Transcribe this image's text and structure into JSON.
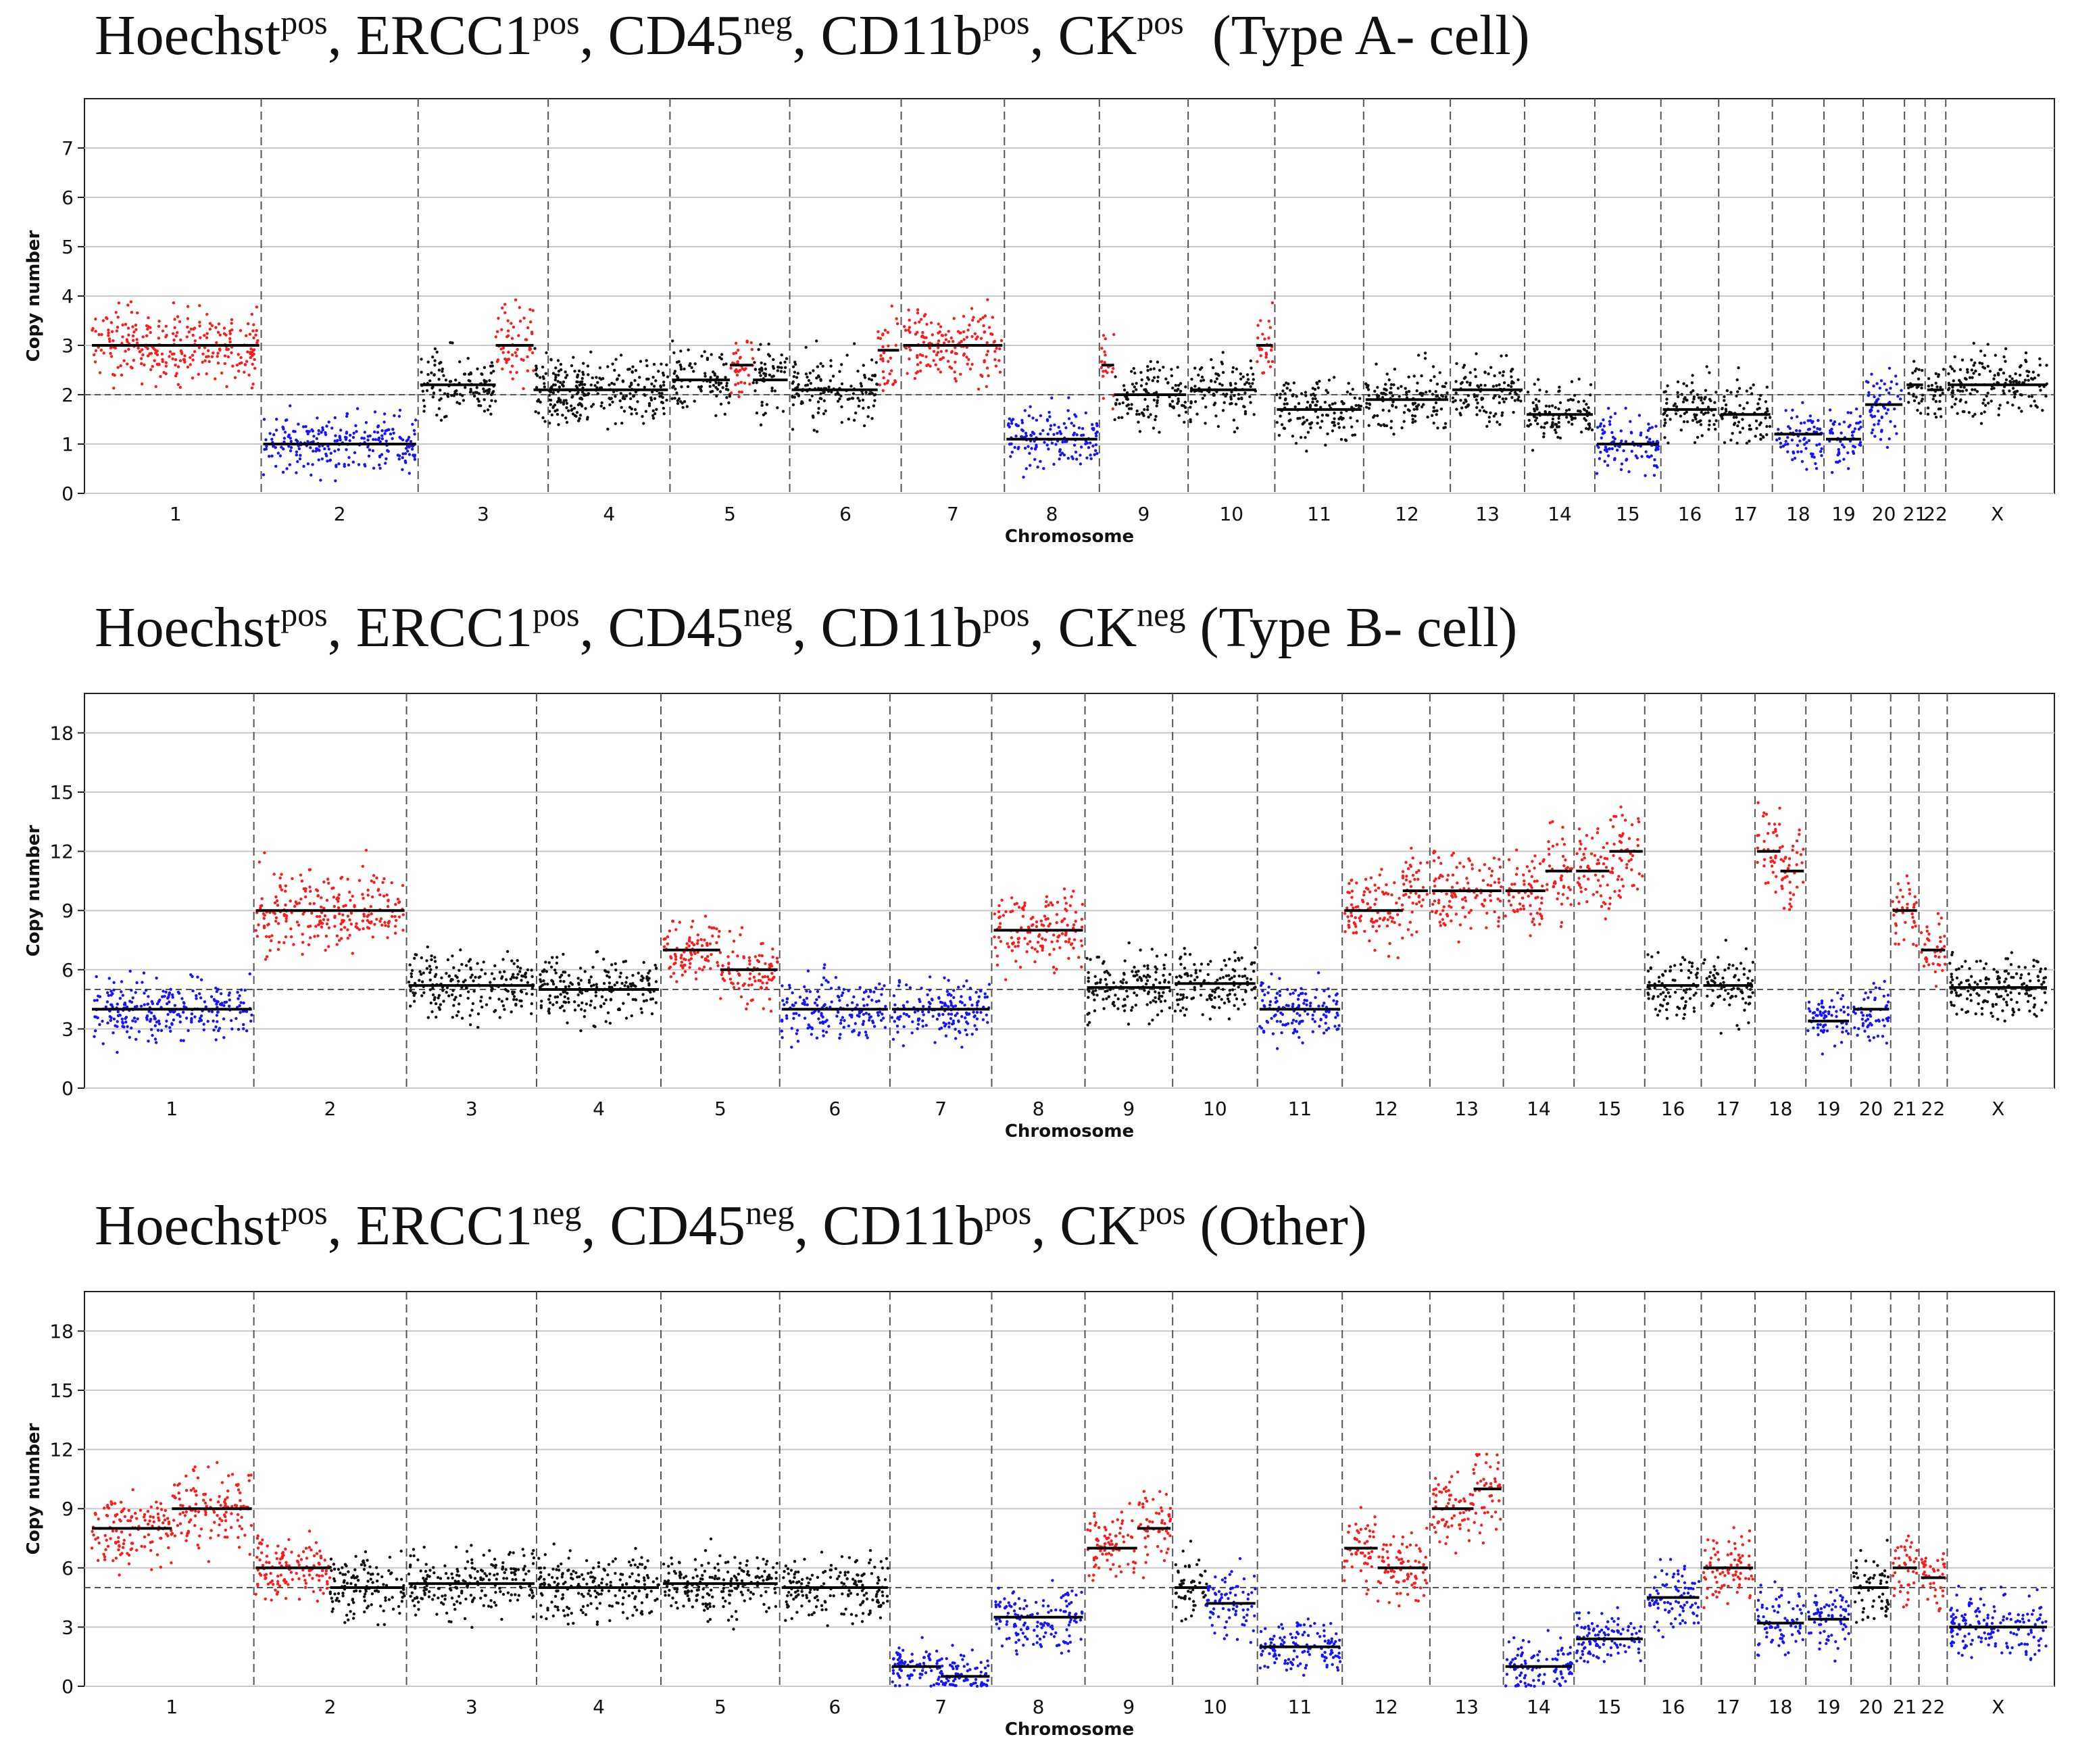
{
  "colors": {
    "gain": "#ff1a1a",
    "loss": "#1414ff",
    "neutral": "#111111",
    "grid": "#c8c8c8"
  },
  "chart_data": [
    {
      "type": "scatter",
      "title": {
        "prefix": "Hoechst",
        "prefix_sup": "pos",
        "m1": "ERCC1",
        "m1_sup": "pos",
        "m2": "CD45",
        "m2_sup": "neg",
        "m3": "CD11b",
        "m3_sup": "pos",
        "m4": "CK",
        "m4_sup": "pos",
        "suffix": "(Type A- cell)"
      },
      "xlabel": "Chromosome",
      "ylabel": "Copy number",
      "ylim": [
        0,
        8
      ],
      "yticks": [
        0,
        1,
        2,
        3,
        4,
        5,
        6,
        7
      ],
      "baseline": 2,
      "chromosomes": [
        "1",
        "2",
        "3",
        "4",
        "5",
        "6",
        "7",
        "8",
        "9",
        "10",
        "11",
        "12",
        "13",
        "14",
        "15",
        "16",
        "17",
        "18",
        "19",
        "20",
        "21",
        "22",
        "X"
      ],
      "chrom_weights": [
        8.3,
        7.6,
        6.3,
        5.9,
        5.8,
        5.4,
        5.0,
        4.6,
        4.3,
        4.2,
        4.3,
        4.2,
        3.6,
        3.4,
        3.2,
        2.8,
        2.6,
        2.5,
        1.9,
        2.0,
        1.0,
        1.0,
        5.0
      ],
      "segments": [
        [
          [
            3,
            0.5,
            "gain"
          ],
          [
            3,
            0.5,
            "gain"
          ]
        ],
        [
          [
            1,
            0.5,
            "loss"
          ],
          [
            1,
            0.5,
            "loss"
          ]
        ],
        [
          [
            2.2,
            0.6,
            "neutral"
          ],
          [
            3,
            0.3,
            "gain"
          ],
          [
            2.1,
            0.4,
            "neutral"
          ]
        ],
        [
          [
            2.1,
            1,
            "neutral"
          ]
        ],
        [
          [
            2.3,
            0.5,
            "neutral"
          ],
          [
            2.6,
            0.2,
            "gain"
          ],
          [
            2.3,
            0.3,
            "neutral"
          ]
        ],
        [
          [
            2.1,
            0.8,
            "neutral"
          ],
          [
            2.9,
            0.2,
            "gain"
          ]
        ],
        [
          [
            3,
            1,
            "gain"
          ]
        ],
        [
          [
            1.1,
            1,
            "loss"
          ]
        ],
        [
          [
            2.6,
            0.15,
            "gain"
          ],
          [
            2.0,
            0.85,
            "neutral"
          ]
        ],
        [
          [
            2.1,
            0.8,
            "neutral"
          ],
          [
            3,
            0.2,
            "gain"
          ]
        ],
        [
          [
            1.7,
            1,
            "neutral"
          ]
        ],
        [
          [
            1.9,
            1,
            "neutral"
          ]
        ],
        [
          [
            2.1,
            1,
            "neutral"
          ]
        ],
        [
          [
            1.6,
            1,
            "neutral"
          ]
        ],
        [
          [
            1.0,
            1,
            "loss"
          ]
        ],
        [
          [
            1.7,
            1,
            "neutral"
          ]
        ],
        [
          [
            1.6,
            1,
            "neutral"
          ]
        ],
        [
          [
            1.2,
            1,
            "loss"
          ]
        ],
        [
          [
            1.1,
            1,
            "loss"
          ]
        ],
        [
          [
            1.8,
            1,
            "loss"
          ]
        ],
        [
          [
            2.2,
            1,
            "neutral"
          ]
        ],
        [
          [
            2.1,
            1,
            "neutral"
          ]
        ],
        [
          [
            2.2,
            1,
            "neutral"
          ]
        ]
      ]
    },
    {
      "type": "scatter",
      "title": {
        "prefix": "Hoechst",
        "prefix_sup": "pos",
        "m1": "ERCC1",
        "m1_sup": "pos",
        "m2": "CD45",
        "m2_sup": "neg",
        "m3": "CD11b",
        "m3_sup": "pos",
        "m4": "CK",
        "m4_sup": "neg",
        "suffix": "(Type B- cell)"
      },
      "xlabel": "Chromosome",
      "ylabel": "Copy number",
      "ylim": [
        0,
        20
      ],
      "yticks": [
        0,
        3,
        6,
        9,
        12,
        15,
        18
      ],
      "baseline": 5,
      "chromosomes": [
        "1",
        "2",
        "3",
        "4",
        "5",
        "6",
        "7",
        "8",
        "9",
        "10",
        "11",
        "12",
        "13",
        "14",
        "15",
        "16",
        "17",
        "18",
        "19",
        "20",
        "21",
        "22",
        "X"
      ],
      "chrom_weights": [
        5.8,
        5.4,
        4.6,
        4.4,
        4.2,
        3.9,
        3.6,
        3.3,
        3.1,
        3.0,
        3.0,
        3.1,
        2.6,
        2.5,
        2.5,
        2.0,
        1.9,
        1.8,
        1.6,
        1.4,
        1.0,
        1.0,
        3.6
      ],
      "segments": [
        [
          [
            4,
            1,
            "loss"
          ]
        ],
        [
          [
            9,
            1,
            "gain"
          ]
        ],
        [
          [
            5.2,
            1,
            "neutral"
          ]
        ],
        [
          [
            5.0,
            1,
            "neutral"
          ]
        ],
        [
          [
            7,
            0.5,
            "gain"
          ],
          [
            6,
            0.5,
            "gain"
          ]
        ],
        [
          [
            4,
            1,
            "loss"
          ]
        ],
        [
          [
            4,
            1,
            "loss"
          ]
        ],
        [
          [
            8,
            1,
            "gain"
          ]
        ],
        [
          [
            5.1,
            1,
            "neutral"
          ]
        ],
        [
          [
            5.3,
            1,
            "neutral"
          ]
        ],
        [
          [
            4,
            1,
            "loss"
          ]
        ],
        [
          [
            9,
            0.7,
            "gain"
          ],
          [
            10,
            0.3,
            "gain"
          ]
        ],
        [
          [
            10,
            1,
            "gain"
          ]
        ],
        [
          [
            10,
            0.6,
            "gain"
          ],
          [
            11,
            0.4,
            "gain"
          ]
        ],
        [
          [
            11,
            0.5,
            "gain"
          ],
          [
            12,
            0.5,
            "gain"
          ]
        ],
        [
          [
            5.2,
            1,
            "neutral"
          ]
        ],
        [
          [
            5.2,
            1,
            "neutral"
          ]
        ],
        [
          [
            12,
            0.5,
            "gain"
          ],
          [
            11,
            0.5,
            "gain"
          ]
        ],
        [
          [
            3.4,
            1,
            "loss"
          ]
        ],
        [
          [
            4,
            1,
            "loss"
          ]
        ],
        [
          [
            9,
            1,
            "gain"
          ]
        ],
        [
          [
            7,
            1,
            "gain"
          ]
        ],
        [
          [
            5.1,
            1,
            "neutral"
          ]
        ]
      ]
    },
    {
      "type": "scatter",
      "title": {
        "prefix": "Hoechst",
        "prefix_sup": "pos",
        "m1": "ERCC1",
        "m1_sup": "neg",
        "m2": "CD45",
        "m2_sup": "neg",
        "m3": "CD11b",
        "m3_sup": "pos",
        "m4": "CK",
        "m4_sup": "pos",
        "suffix": "(Other)"
      },
      "xlabel": "Chromosome",
      "ylabel": "Copy number",
      "ylim": [
        0,
        20
      ],
      "yticks": [
        0,
        3,
        6,
        9,
        12,
        15,
        18
      ],
      "baseline": 5,
      "chromosomes": [
        "1",
        "2",
        "3",
        "4",
        "5",
        "6",
        "7",
        "8",
        "9",
        "10",
        "11",
        "12",
        "13",
        "14",
        "15",
        "16",
        "17",
        "18",
        "19",
        "20",
        "21",
        "22",
        "X"
      ],
      "chrom_weights": [
        5.8,
        5.4,
        4.6,
        4.4,
        4.2,
        3.9,
        3.6,
        3.3,
        3.1,
        3.0,
        3.0,
        3.1,
        2.6,
        2.5,
        2.5,
        2.0,
        1.9,
        1.8,
        1.6,
        1.4,
        1.0,
        1.0,
        3.6
      ],
      "segments": [
        [
          [
            8,
            0.5,
            "gain"
          ],
          [
            9,
            0.5,
            "gain"
          ]
        ],
        [
          [
            6,
            0.5,
            "gain"
          ],
          [
            5.0,
            0.5,
            "neutral"
          ]
        ],
        [
          [
            5.2,
            1,
            "neutral"
          ]
        ],
        [
          [
            5.0,
            1,
            "neutral"
          ]
        ],
        [
          [
            5.2,
            1,
            "neutral"
          ]
        ],
        [
          [
            5.0,
            1,
            "neutral"
          ]
        ],
        [
          [
            1,
            0.5,
            "loss"
          ],
          [
            0.5,
            0.5,
            "loss"
          ]
        ],
        [
          [
            3.5,
            1,
            "loss"
          ]
        ],
        [
          [
            7,
            0.6,
            "gain"
          ],
          [
            8,
            0.4,
            "gain"
          ]
        ],
        [
          [
            5,
            0.4,
            "neutral"
          ],
          [
            4.2,
            0.6,
            "loss"
          ]
        ],
        [
          [
            2,
            1,
            "loss"
          ]
        ],
        [
          [
            7,
            0.4,
            "gain"
          ],
          [
            6,
            0.6,
            "gain"
          ]
        ],
        [
          [
            9,
            0.6,
            "gain"
          ],
          [
            10,
            0.4,
            "gain"
          ]
        ],
        [
          [
            1,
            1,
            "loss"
          ]
        ],
        [
          [
            2.4,
            1,
            "loss"
          ]
        ],
        [
          [
            4.5,
            1,
            "loss"
          ]
        ],
        [
          [
            6,
            1,
            "gain"
          ]
        ],
        [
          [
            3.2,
            1,
            "loss"
          ]
        ],
        [
          [
            3.4,
            1,
            "loss"
          ]
        ],
        [
          [
            5.0,
            1,
            "neutral"
          ]
        ],
        [
          [
            6,
            1,
            "gain"
          ]
        ],
        [
          [
            5.5,
            1,
            "gain"
          ]
        ],
        [
          [
            3,
            1,
            "loss"
          ]
        ]
      ]
    }
  ]
}
